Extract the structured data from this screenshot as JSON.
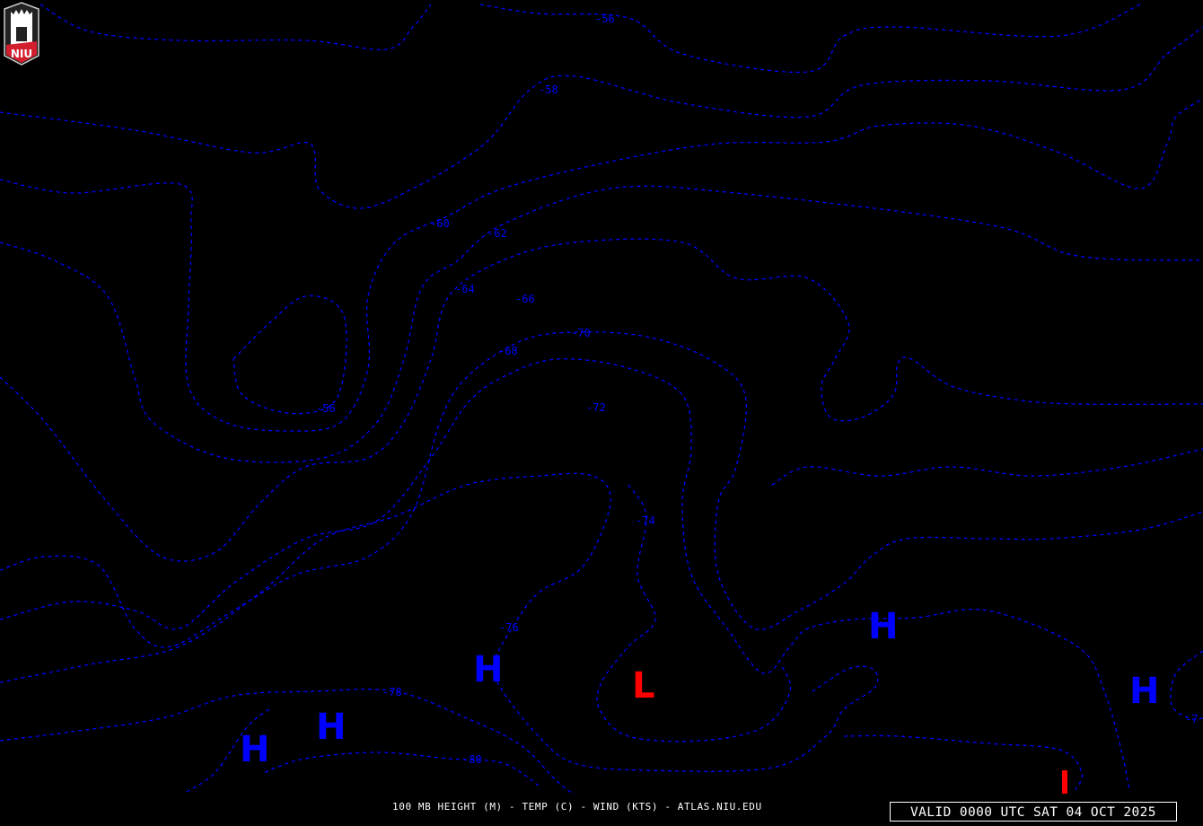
{
  "map": {
    "footer_text": "100 MB HEIGHT (M) - TEMP (C) - WIND (KTS) - ATLAS.NIU.EDU",
    "valid_time": "VALID 0000 UTC SAT 04 OCT 2025",
    "logo_text": "NIU",
    "contour_color": "#0000ff",
    "high_color": "#0000ff",
    "low_color": "#ff0000",
    "contour_labels": [
      "-56",
      "-58",
      "-60",
      "-62",
      "-64",
      "-66",
      "-68",
      "-70",
      "-72",
      "-56",
      "-74",
      "-76",
      "-78",
      "-80",
      "-7"
    ],
    "high_symbol": "H",
    "low_symbol": "L"
  }
}
